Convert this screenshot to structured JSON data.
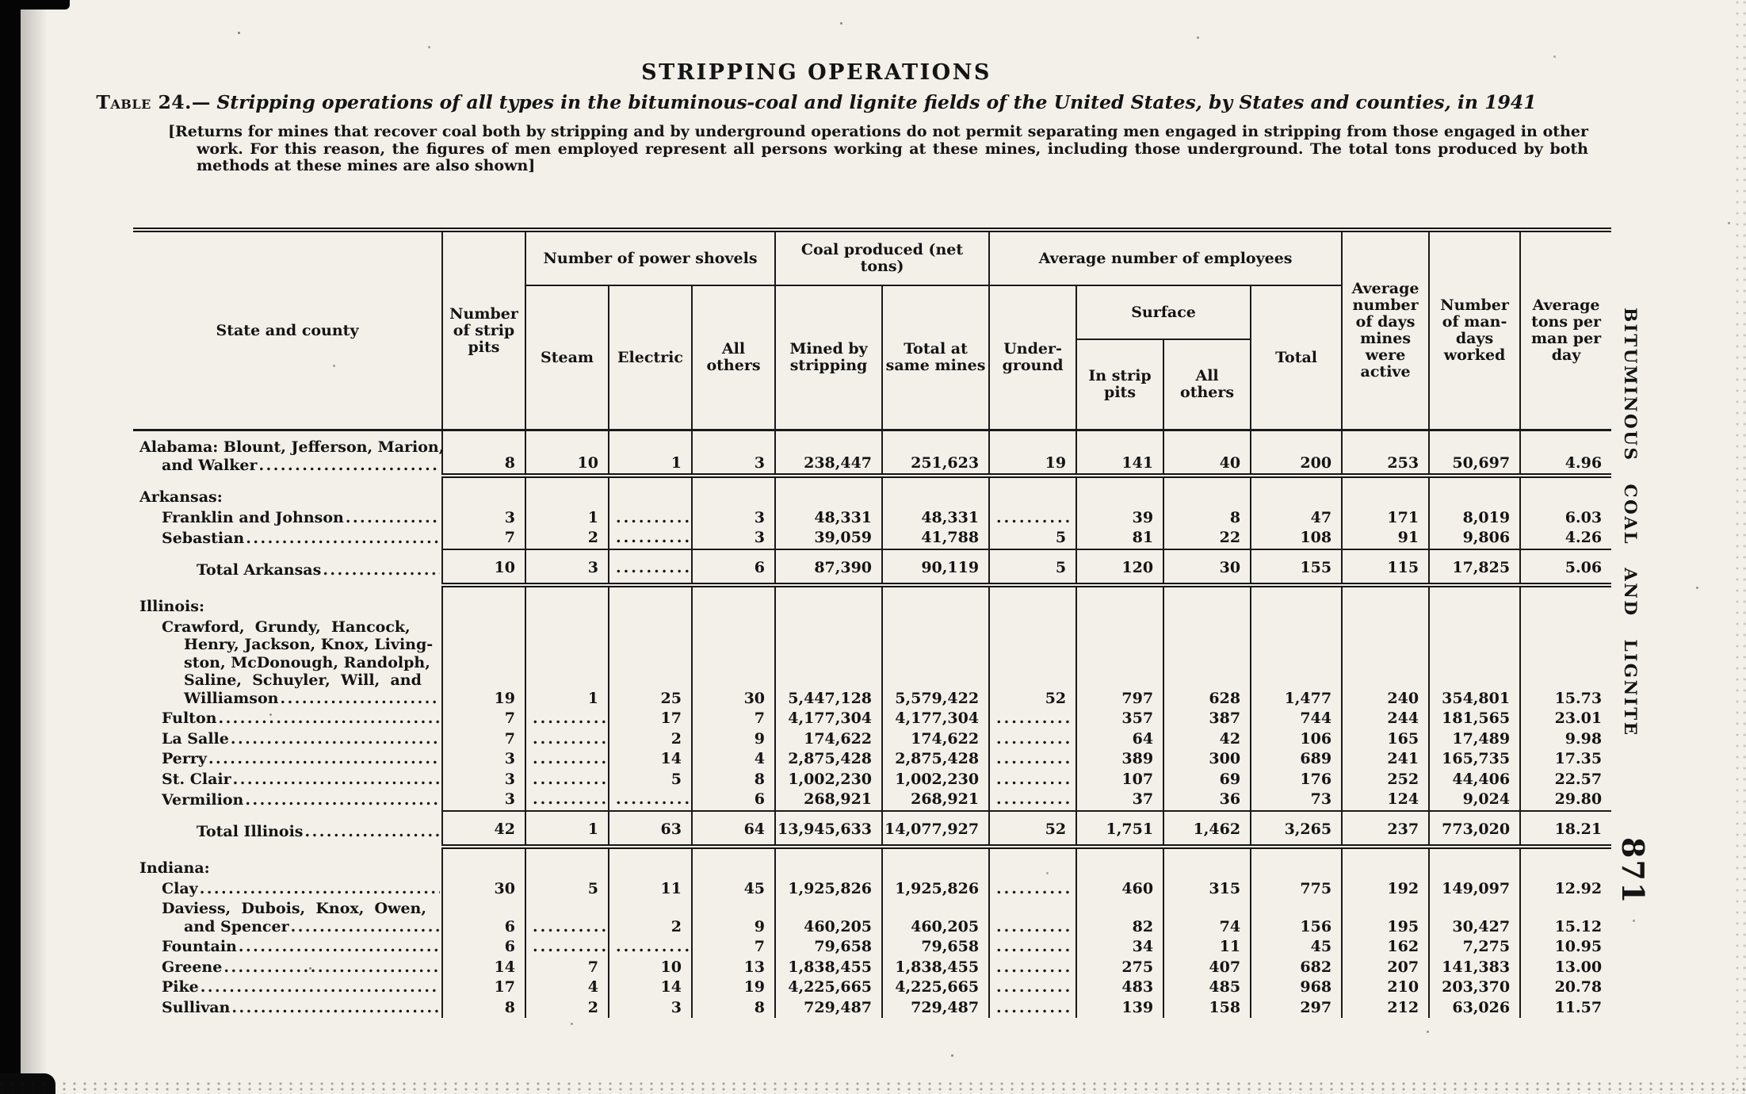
{
  "page": {
    "title": "STRIPPING OPERATIONS",
    "caption_label": "Table 24.—",
    "caption_text": "Stripping operations of all types in the bituminous-coal and lignite fields of the United States, by States and counties, in 1941",
    "note": "[Returns for mines that recover coal both by stripping and by underground operations do not permit separating men engaged in stripping from those engaged in other work.  For this reason, the figures of men employed represent all persons working at these mines, including those underground.  The total tons produced by both methods at these mines are also shown]",
    "margin_label": "BITUMINOUS COAL AND LIGNITE",
    "page_number": "871",
    "ink_color": "#141414",
    "paper_color": "#f2f0e9"
  },
  "table": {
    "headers": {
      "state": "State and county",
      "strip_pits": "Number\nof strip\npits",
      "power_shovels": "Number of power shovels",
      "steam": "Steam",
      "electric": "Electric",
      "all_others": "All\nothers",
      "coal_produced": "Coal produced (net tons)",
      "mined_by_stripping": "Mined by\nstripping",
      "total_at_same_mines": "Total at\nsame mines",
      "avg_employees": "Average number of employees",
      "underground": "Under-\nground",
      "surface": "Surface",
      "in_strip_pits": "In strip\npits",
      "surface_all_others": "All\nothers",
      "total": "Total",
      "avg_days": "Average\nnumber\nof days\nmines\nwere\nactive",
      "man_days": "Number\nof man-\ndays\nworked",
      "avg_tons": "Average\ntons per\nman per\nday"
    },
    "leader": "........................................................................",
    "rows": [
      {
        "name": "row-alabama",
        "cls": "first-data",
        "stub": [
          {
            "t": "Alabama: Blount, Jefferson, Marion,",
            "ind": 0
          },
          {
            "t": "and Walker",
            "ind": 28,
            "lead": true
          }
        ],
        "values": [
          "8",
          "10",
          "1",
          "3",
          "238,447",
          "251,623",
          "19",
          "141",
          "40",
          "200",
          "253",
          "50,697",
          "4.96"
        ],
        "rule_below": "double"
      },
      {
        "name": "row-arkansas-header",
        "cls": "section",
        "stub": [
          {
            "t": "Arkansas:",
            "ind": 0
          }
        ],
        "values": null
      },
      {
        "name": "row-franklin-johnson",
        "stub": [
          {
            "t": "Franklin and Johnson",
            "ind": 28,
            "lead": true
          }
        ],
        "values": [
          "3",
          "1",
          "..........",
          "3",
          "48,331",
          "48,331",
          "..........",
          "39",
          "8",
          "47",
          "171",
          "8,019",
          "6.03"
        ]
      },
      {
        "name": "row-sebastian",
        "stub": [
          {
            "t": "Sebastian",
            "ind": 28,
            "lead": true
          }
        ],
        "values": [
          "7",
          "2",
          "..........",
          "3",
          "39,059",
          "41,788",
          "5",
          "81",
          "22",
          "108",
          "91",
          "9,806",
          "4.26"
        ]
      },
      {
        "name": "row-total-arkansas",
        "cls": "total",
        "stub": [
          {
            "t": "Total Arkansas",
            "ind": 72,
            "lead": true
          }
        ],
        "values": [
          "10",
          "3",
          "..........",
          "6",
          "87,390",
          "90,119",
          "5",
          "120",
          "30",
          "155",
          "115",
          "17,825",
          "5.06"
        ],
        "rule_above": "single",
        "rule_below": "double"
      },
      {
        "name": "row-illinois-header",
        "cls": "section",
        "stub": [
          {
            "t": "Illinois:",
            "ind": 0
          }
        ],
        "values": null
      },
      {
        "name": "row-illinois-group",
        "stub": [
          {
            "t": "Crawford,  Grundy,  Hancock,",
            "ind": 28
          },
          {
            "t": "Henry, Jackson, Knox, Living-",
            "ind": 56
          },
          {
            "t": "ston, McDonough, Randolph,",
            "ind": 56
          },
          {
            "t": "Saline,  Schuyler,  Will,  and",
            "ind": 56
          },
          {
            "t": "Williamson",
            "ind": 56,
            "lead": true
          }
        ],
        "values": [
          "19",
          "1",
          "25",
          "30",
          "5,447,128",
          "5,579,422",
          "52",
          "797",
          "628",
          "1,477",
          "240",
          "354,801",
          "15.73"
        ]
      },
      {
        "name": "row-fulton",
        "stub": [
          {
            "t": "Fulton",
            "ind": 28,
            "lead": true
          }
        ],
        "values": [
          "7",
          "..........",
          "17",
          "7",
          "4,177,304",
          "4,177,304",
          "..........",
          "357",
          "387",
          "744",
          "244",
          "181,565",
          "23.01"
        ]
      },
      {
        "name": "row-la-salle",
        "stub": [
          {
            "t": "La Salle",
            "ind": 28,
            "lead": true
          }
        ],
        "values": [
          "7",
          "..........",
          "2",
          "9",
          "174,622",
          "174,622",
          "..........",
          "64",
          "42",
          "106",
          "165",
          "17,489",
          "9.98"
        ]
      },
      {
        "name": "row-perry",
        "stub": [
          {
            "t": "Perry",
            "ind": 28,
            "lead": true
          }
        ],
        "values": [
          "3",
          "..........",
          "14",
          "4",
          "2,875,428",
          "2,875,428",
          "..........",
          "389",
          "300",
          "689",
          "241",
          "165,735",
          "17.35"
        ]
      },
      {
        "name": "row-st-clair",
        "stub": [
          {
            "t": "St. Clair",
            "ind": 28,
            "lead": true
          }
        ],
        "values": [
          "3",
          "..........",
          "5",
          "8",
          "1,002,230",
          "1,002,230",
          "..........",
          "107",
          "69",
          "176",
          "252",
          "44,406",
          "22.57"
        ]
      },
      {
        "name": "row-vermilion",
        "stub": [
          {
            "t": "Vermilion",
            "ind": 28,
            "lead": true
          }
        ],
        "values": [
          "3",
          "..........",
          "..........",
          "6",
          "268,921",
          "268,921",
          "..........",
          "37",
          "36",
          "73",
          "124",
          "9,024",
          "29.80"
        ]
      },
      {
        "name": "row-total-illinois",
        "cls": "total",
        "stub": [
          {
            "t": "Total Illinois",
            "ind": 72,
            "lead": true
          }
        ],
        "values": [
          "42",
          "1",
          "63",
          "64",
          "13,945,633",
          "14,077,927",
          "52",
          "1,751",
          "1,462",
          "3,265",
          "237",
          "773,020",
          "18.21"
        ],
        "rule_above": "single",
        "rule_below": "double"
      },
      {
        "name": "row-indiana-header",
        "cls": "section",
        "stub": [
          {
            "t": "Indiana:",
            "ind": 0
          }
        ],
        "values": null
      },
      {
        "name": "row-clay",
        "stub": [
          {
            "t": "Clay",
            "ind": 28,
            "lead": true
          }
        ],
        "values": [
          "30",
          "5",
          "11",
          "45",
          "1,925,826",
          "1,925,826",
          "..........",
          "460",
          "315",
          "775",
          "192",
          "149,097",
          "12.92"
        ]
      },
      {
        "name": "row-daviess-group",
        "stub": [
          {
            "t": "Daviess,  Dubois,  Knox,  Owen,",
            "ind": 28
          },
          {
            "t": "and Spencer",
            "ind": 56,
            "lead": true
          }
        ],
        "values": [
          "6",
          "..........",
          "2",
          "9",
          "460,205",
          "460,205",
          "..........",
          "82",
          "74",
          "156",
          "195",
          "30,427",
          "15.12"
        ]
      },
      {
        "name": "row-fountain",
        "stub": [
          {
            "t": "Fountain",
            "ind": 28,
            "lead": true
          }
        ],
        "values": [
          "6",
          "..........",
          "..........",
          "7",
          "79,658",
          "79,658",
          "..........",
          "34",
          "11",
          "45",
          "162",
          "7,275",
          "10.95"
        ]
      },
      {
        "name": "row-greene",
        "stub": [
          {
            "t": "Greene",
            "ind": 28,
            "lead": true
          }
        ],
        "values": [
          "14",
          "7",
          "10",
          "13",
          "1,838,455",
          "1,838,455",
          "..........",
          "275",
          "407",
          "682",
          "207",
          "141,383",
          "13.00"
        ]
      },
      {
        "name": "row-pike",
        "stub": [
          {
            "t": "Pike",
            "ind": 28,
            "lead": true
          }
        ],
        "values": [
          "17",
          "4",
          "14",
          "19",
          "4,225,665",
          "4,225,665",
          "..........",
          "483",
          "485",
          "968",
          "210",
          "203,370",
          "20.78"
        ]
      },
      {
        "name": "row-sullivan",
        "stub": [
          {
            "t": "Sullivan",
            "ind": 28,
            "lead": true
          }
        ],
        "values": [
          "8",
          "2",
          "3",
          "8",
          "729,487",
          "729,487",
          "..........",
          "139",
          "158",
          "297",
          "212",
          "63,026",
          "11.57"
        ]
      }
    ]
  }
}
